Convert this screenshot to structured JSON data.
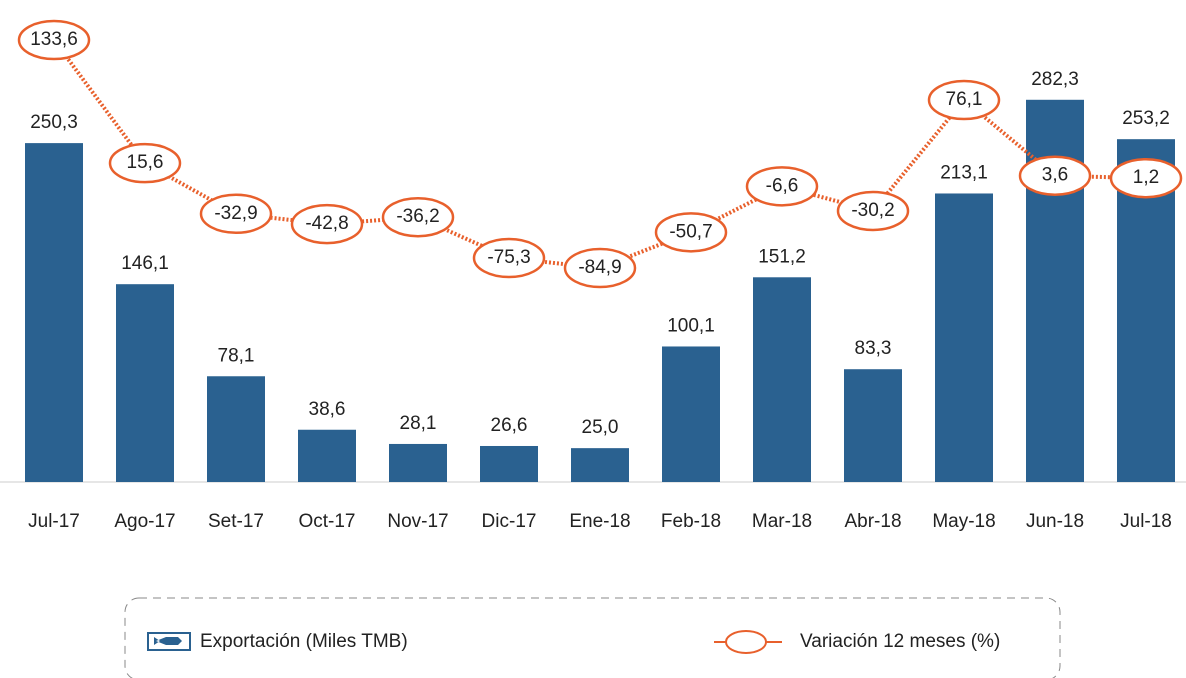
{
  "chart_data": {
    "type": "bar",
    "categories": [
      "Jul-17",
      "Ago-17",
      "Set-17",
      "Oct-17",
      "Nov-17",
      "Dic-17",
      "Ene-18",
      "Feb-18",
      "Mar-18",
      "Abr-18",
      "May-18",
      "Jun-18",
      "Jul-18"
    ],
    "series": [
      {
        "name": "Exportación (Miles TMB)",
        "type": "bar",
        "color": "#2a6190",
        "values": [
          250.3,
          146.1,
          78.1,
          38.6,
          28.1,
          26.6,
          25.0,
          100.1,
          151.2,
          83.3,
          213.1,
          282.3,
          253.2
        ],
        "value_labels": [
          "250,3",
          "146,1",
          "78,1",
          "38,6",
          "28,1",
          "26,6",
          "25,0",
          "100,1",
          "151,2",
          "83,3",
          "213,1",
          "282,3",
          "253,2"
        ]
      },
      {
        "name": "Variación 12 meses (%)",
        "type": "line",
        "axis": "y2",
        "color": "#e8602c",
        "values": [
          133.6,
          15.6,
          -32.9,
          -42.8,
          -36.2,
          -75.3,
          -84.9,
          -50.7,
          -6.6,
          -30.2,
          76.1,
          3.6,
          1.2
        ],
        "value_labels": [
          "133,6",
          "15,6",
          "-32,9",
          "-42,8",
          "-36,2",
          "-75,3",
          "-84,9",
          "-50,7",
          "-6,6",
          "-30,2",
          "76,1",
          "3,6",
          "1,2"
        ]
      }
    ],
    "ylim": [
      0,
      356
    ],
    "y2lim": [
      -290,
      172
    ],
    "legend": "bottom"
  }
}
